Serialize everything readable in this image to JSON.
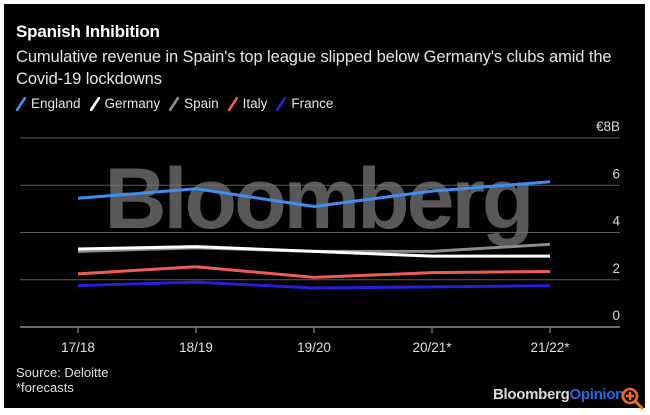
{
  "header": {
    "title": "Spanish Inhibition",
    "subtitle": "Cumulative revenue in Spain's top league slipped below Germany's clubs amid the Covid-19 lockdowns"
  },
  "footer": {
    "source": "Source: Deloitte",
    "note": "*forecasts",
    "brand_main": "Bloomberg",
    "brand_accent": "Opinion",
    "zoom_icon": "zoom-in-icon"
  },
  "watermark": "Bloomberg",
  "chart_data": {
    "type": "line",
    "title": "Spanish Inhibition",
    "subtitle": "Cumulative revenue in Spain's top league slipped below Germany's clubs amid the Covid-19 lockdowns",
    "xlabel": "",
    "ylabel": "€8B",
    "x": [
      "17/18",
      "18/19",
      "19/20",
      "20/21*",
      "21/22*"
    ],
    "ylim": [
      0,
      8
    ],
    "yticks": [
      0,
      2,
      4,
      6,
      8
    ],
    "ytick_labels": [
      "0",
      "2",
      "4",
      "6",
      "€8B"
    ],
    "grid": true,
    "legend_position": "top-left",
    "series": [
      {
        "name": "England",
        "color": "#3d8ef0",
        "values": [
          5.45,
          5.85,
          5.1,
          5.75,
          6.15
        ]
      },
      {
        "name": "Spain",
        "color": "#8c8c8c",
        "values": [
          3.2,
          3.35,
          3.2,
          3.2,
          3.5
        ]
      },
      {
        "name": "Germany",
        "color": "#ffffff",
        "values": [
          3.3,
          3.4,
          3.2,
          3.0,
          3.0
        ]
      },
      {
        "name": "Italy",
        "color": "#f05a5a",
        "values": [
          2.25,
          2.55,
          2.1,
          2.3,
          2.35
        ]
      },
      {
        "name": "France",
        "color": "#2a1fd6",
        "values": [
          1.75,
          1.9,
          1.65,
          1.7,
          1.75
        ]
      }
    ],
    "legend_order": [
      "England",
      "Germany",
      "Spain",
      "Italy",
      "France"
    ]
  }
}
